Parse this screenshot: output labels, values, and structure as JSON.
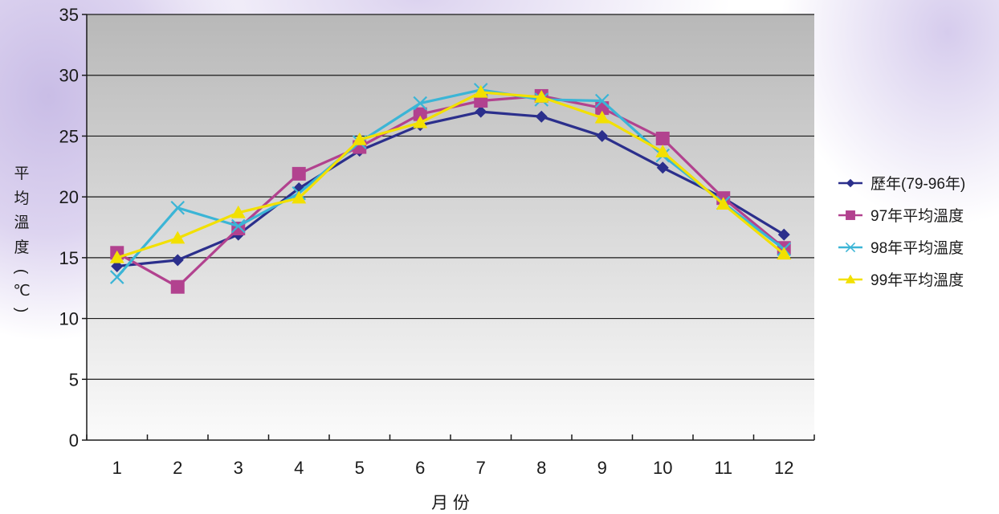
{
  "chart_data": {
    "type": "line",
    "title": "",
    "xlabel": "月 份",
    "ylabel": "平均溫度(℃)",
    "ylabel_chars": [
      "平",
      "均",
      "溫",
      "度",
      "(",
      "℃",
      ")"
    ],
    "categories": [
      "1",
      "2",
      "3",
      "4",
      "5",
      "6",
      "7",
      "8",
      "9",
      "10",
      "11",
      "12"
    ],
    "ylim": [
      0,
      35
    ],
    "yticks": [
      "0",
      "5",
      "10",
      "15",
      "20",
      "25",
      "30",
      "35"
    ],
    "grid": true,
    "legend_position": "right",
    "series": [
      {
        "name": "歷年(79-96年)",
        "color": "#2b2f8c",
        "marker": "diamond",
        "values": [
          14.3,
          14.8,
          16.9,
          20.7,
          23.8,
          25.9,
          27.0,
          26.6,
          25.0,
          22.4,
          19.9,
          16.9
        ]
      },
      {
        "name": "97年平均溫度",
        "color": "#b2428f",
        "marker": "square",
        "values": [
          15.4,
          12.6,
          17.4,
          21.9,
          24.1,
          26.8,
          27.9,
          28.3,
          27.3,
          24.8,
          19.9,
          15.8
        ]
      },
      {
        "name": "98年平均溫度",
        "color": "#3bb5d6",
        "marker": "x",
        "values": [
          13.4,
          19.1,
          17.6,
          20.3,
          24.5,
          27.7,
          28.8,
          28.0,
          27.9,
          23.4,
          19.5,
          15.7
        ]
      },
      {
        "name": "99年平均溫度",
        "color": "#f2e000",
        "marker": "triangle",
        "values": [
          15.0,
          16.6,
          18.7,
          19.9,
          24.7,
          26.1,
          28.6,
          28.2,
          26.5,
          23.7,
          19.4,
          15.3
        ]
      }
    ]
  }
}
